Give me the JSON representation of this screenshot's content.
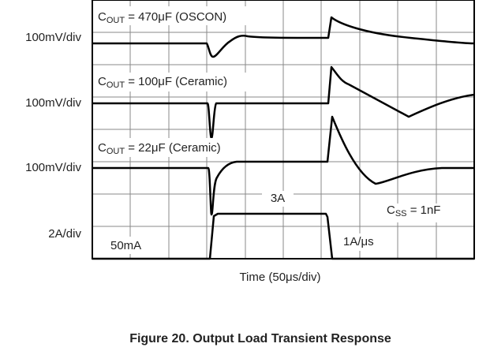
{
  "scale_labels": [
    "100mV/div",
    "100mV/div",
    "100mV/div",
    "2A/div"
  ],
  "traces": [
    {
      "prefix": "C",
      "sub": "OUT",
      "rest": " = 470μF (OSCON)"
    },
    {
      "prefix": "C",
      "sub": "OUT",
      "rest": " = 100μF (Ceramic)"
    },
    {
      "prefix": "C",
      "sub": "OUT",
      "rest": " = 22μF (Ceramic)"
    }
  ],
  "annotations": {
    "step_high": "3A",
    "step_low": "50mA",
    "slew": "1A/μs",
    "css_prefix": "C",
    "css_sub": "SS",
    "css_rest": " = 1nF"
  },
  "x_label": "Time (50μs/div)",
  "caption": "Figure 20. Output Load Transient Response"
}
